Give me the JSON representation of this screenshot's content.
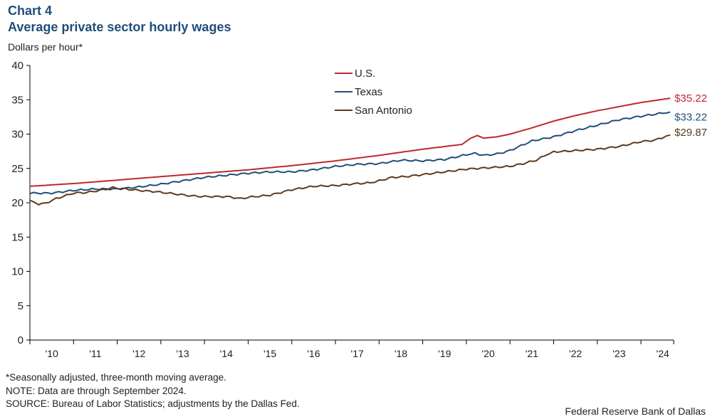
{
  "header": {
    "chart_label": "Chart 4",
    "title": "Average private sector hourly wages",
    "unit_label": "Dollars per hour*"
  },
  "footnotes": {
    "note1": "*Seasonally adjusted, three-month moving average.",
    "note2": "NOTE: Data are through September 2024.",
    "note3": "SOURCE: Bureau of Labor Statistics; adjustments by the Dallas Fed."
  },
  "credit": "Federal Reserve Bank of Dallas",
  "chart_data": {
    "type": "line",
    "title": "Average private sector hourly wages",
    "ylabel": "Dollars per hour*",
    "xlabel": "",
    "ylim": [
      0,
      40
    ],
    "yticks": [
      0,
      5,
      10,
      15,
      20,
      25,
      30,
      35,
      40
    ],
    "xlim": [
      2010.0,
      2024.75
    ],
    "xtick_labels": [
      "'10",
      "'11",
      "'12",
      "'13",
      "'14",
      "'15",
      "'16",
      "'17",
      "'18",
      "'19",
      "'20",
      "'21",
      "'22",
      "'23",
      "'24"
    ],
    "legend_position": "top-center",
    "series": [
      {
        "name": "U.S.",
        "color": "#c0282d",
        "end_label": "$35.22",
        "points": [
          [
            2010.0,
            22.4
          ],
          [
            2011.0,
            22.8
          ],
          [
            2012.0,
            23.3
          ],
          [
            2013.0,
            23.8
          ],
          [
            2014.0,
            24.3
          ],
          [
            2015.0,
            24.8
          ],
          [
            2016.0,
            25.4
          ],
          [
            2017.0,
            26.1
          ],
          [
            2018.0,
            26.9
          ],
          [
            2019.0,
            27.8
          ],
          [
            2019.9,
            28.5
          ],
          [
            2020.1,
            29.4
          ],
          [
            2020.25,
            29.8
          ],
          [
            2020.4,
            29.4
          ],
          [
            2020.7,
            29.6
          ],
          [
            2021.0,
            30.0
          ],
          [
            2021.5,
            30.9
          ],
          [
            2022.0,
            31.9
          ],
          [
            2022.5,
            32.7
          ],
          [
            2023.0,
            33.4
          ],
          [
            2023.5,
            34.0
          ],
          [
            2024.0,
            34.6
          ],
          [
            2024.67,
            35.22
          ]
        ]
      },
      {
        "name": "Texas",
        "color": "#1f4e79",
        "end_label": "$33.22",
        "points": [
          [
            2010.0,
            21.4
          ],
          [
            2010.5,
            21.4
          ],
          [
            2011.0,
            21.8
          ],
          [
            2011.5,
            22.0
          ],
          [
            2012.0,
            22.0
          ],
          [
            2012.5,
            22.3
          ],
          [
            2013.0,
            22.7
          ],
          [
            2013.5,
            23.2
          ],
          [
            2014.0,
            23.7
          ],
          [
            2014.5,
            24.0
          ],
          [
            2015.0,
            24.3
          ],
          [
            2015.5,
            24.5
          ],
          [
            2016.0,
            24.5
          ],
          [
            2016.5,
            24.8
          ],
          [
            2017.0,
            25.3
          ],
          [
            2017.5,
            25.6
          ],
          [
            2018.0,
            25.7
          ],
          [
            2018.5,
            26.2
          ],
          [
            2019.0,
            26.1
          ],
          [
            2019.5,
            26.3
          ],
          [
            2020.0,
            27.0
          ],
          [
            2020.2,
            27.2
          ],
          [
            2020.4,
            26.9
          ],
          [
            2020.7,
            27.1
          ],
          [
            2021.0,
            27.6
          ],
          [
            2021.5,
            29.0
          ],
          [
            2022.0,
            29.6
          ],
          [
            2022.5,
            30.5
          ],
          [
            2023.0,
            31.3
          ],
          [
            2023.5,
            32.1
          ],
          [
            2024.0,
            32.6
          ],
          [
            2024.67,
            33.22
          ]
        ]
      },
      {
        "name": "San Antonio",
        "color": "#5c3a1e",
        "end_label": "$29.87",
        "points": [
          [
            2010.0,
            20.3
          ],
          [
            2010.2,
            19.8
          ],
          [
            2010.35,
            19.9
          ],
          [
            2010.6,
            20.6
          ],
          [
            2011.0,
            21.4
          ],
          [
            2011.3,
            21.5
          ],
          [
            2011.6,
            21.8
          ],
          [
            2011.9,
            22.2
          ],
          [
            2012.2,
            22.0
          ],
          [
            2012.5,
            21.8
          ],
          [
            2012.9,
            21.6
          ],
          [
            2013.3,
            21.3
          ],
          [
            2013.7,
            21.0
          ],
          [
            2014.0,
            20.9
          ],
          [
            2014.5,
            20.9
          ],
          [
            2014.85,
            20.6
          ],
          [
            2015.0,
            20.8
          ],
          [
            2015.5,
            21.1
          ],
          [
            2016.0,
            21.9
          ],
          [
            2016.5,
            22.4
          ],
          [
            2017.0,
            22.5
          ],
          [
            2017.5,
            22.8
          ],
          [
            2017.8,
            22.9
          ],
          [
            2018.0,
            23.2
          ],
          [
            2018.3,
            23.7
          ],
          [
            2018.6,
            23.8
          ],
          [
            2019.0,
            24.1
          ],
          [
            2019.5,
            24.5
          ],
          [
            2020.0,
            24.9
          ],
          [
            2020.5,
            25.1
          ],
          [
            2021.0,
            25.3
          ],
          [
            2021.3,
            25.7
          ],
          [
            2021.6,
            26.2
          ],
          [
            2021.8,
            26.9
          ],
          [
            2022.0,
            27.4
          ],
          [
            2022.5,
            27.6
          ],
          [
            2023.0,
            27.8
          ],
          [
            2023.5,
            28.2
          ],
          [
            2024.0,
            28.9
          ],
          [
            2024.3,
            29.1
          ],
          [
            2024.67,
            29.87
          ]
        ]
      }
    ]
  }
}
